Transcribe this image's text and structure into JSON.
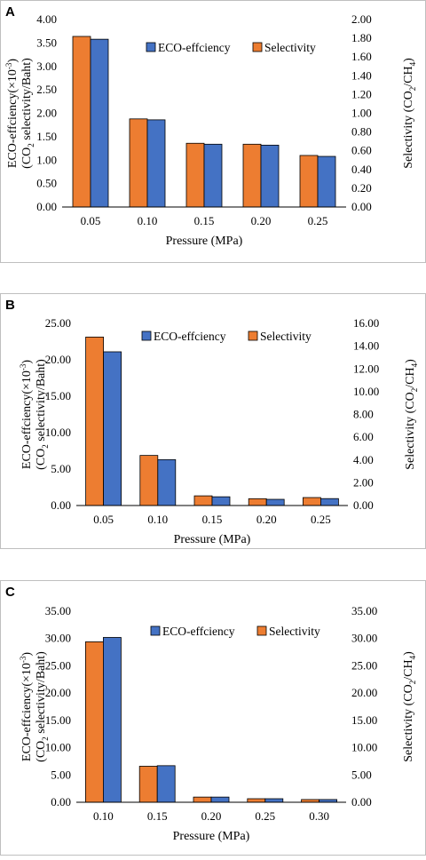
{
  "chart_data": [
    {
      "type": "bar",
      "panel": "A",
      "categories": [
        "0.05",
        "0.10",
        "0.15",
        "0.20",
        "0.25"
      ],
      "series": [
        {
          "name": "Selectivity",
          "axis": "right",
          "color": "#ed7d31",
          "values": [
            1.82,
            0.94,
            0.68,
            0.67,
            0.55
          ]
        },
        {
          "name": "ECO-effciency",
          "axis": "left",
          "color": "#4472c4",
          "values": [
            3.58,
            1.86,
            1.34,
            1.32,
            1.08
          ]
        }
      ],
      "xlabel": "Pressure (MPa)",
      "ylabel_left_line1": "ECO-effciency(×10",
      "ylabel_left_sup": "-3",
      "ylabel_left_line1_end": ")",
      "ylabel_left_line2_a": "(CO",
      "ylabel_left_line2_sub": "2",
      "ylabel_left_line2_b": " selectivity/Baht)",
      "ylabel_right_a": "Selectivity  (CO",
      "ylabel_right_sub1": "2",
      "ylabel_right_b": "/CH",
      "ylabel_right_sub2": "4",
      "ylabel_right_c": ")",
      "ylim_left": [
        0,
        4.0
      ],
      "yticks_left": [
        "0.00",
        "0.50",
        "1.00",
        "1.50",
        "2.00",
        "2.50",
        "3.00",
        "3.50",
        "4.00"
      ],
      "ylim_right": [
        0,
        2.0
      ],
      "yticks_right": [
        "0.00",
        "0.20",
        "0.40",
        "0.60",
        "0.80",
        "1.00",
        "1.20",
        "1.40",
        "1.60",
        "1.80",
        "2.00"
      ],
      "legend": "top-right",
      "grid": false
    },
    {
      "type": "bar",
      "panel": "B",
      "categories": [
        "0.05",
        "0.10",
        "0.15",
        "0.20",
        "0.25"
      ],
      "series": [
        {
          "name": "Selectivity",
          "axis": "right",
          "color": "#ed7d31",
          "values": [
            14.8,
            4.4,
            0.85,
            0.6,
            0.7
          ]
        },
        {
          "name": "ECO-effciency",
          "axis": "left",
          "color": "#4472c4",
          "values": [
            21.1,
            6.3,
            1.2,
            0.85,
            0.95
          ]
        }
      ],
      "xlabel": "Pressure (MPa)",
      "ylabel_left_line1": "ECO-effciency(×10",
      "ylabel_left_sup": "-3",
      "ylabel_left_line1_end": ")",
      "ylabel_left_line2_a": "(CO",
      "ylabel_left_line2_sub": "2",
      "ylabel_left_line2_b": " selectivity/Baht)",
      "ylabel_right_a": "Selectivity  (CO",
      "ylabel_right_sub1": "2",
      "ylabel_right_b": "/CH",
      "ylabel_right_sub2": "4",
      "ylabel_right_c": ")",
      "ylim_left": [
        0,
        25.0
      ],
      "yticks_left": [
        "0.00",
        "5.00",
        "10.00",
        "15.00",
        "20.00",
        "25.00"
      ],
      "ylim_right": [
        0,
        16.0
      ],
      "yticks_right": [
        "0.00",
        "2.00",
        "4.00",
        "6.00",
        "8.00",
        "10.00",
        "12.00",
        "14.00",
        "16.00"
      ],
      "legend": "top-right",
      "grid": false
    },
    {
      "type": "bar",
      "panel": "C",
      "categories": [
        "0.10",
        "0.15",
        "0.20",
        "0.25",
        "0.30"
      ],
      "series": [
        {
          "name": "Selectivity",
          "axis": "right",
          "color": "#ed7d31",
          "values": [
            29.4,
            6.6,
            0.95,
            0.65,
            0.5
          ]
        },
        {
          "name": "ECO-effciency",
          "axis": "left",
          "color": "#4472c4",
          "values": [
            30.2,
            6.7,
            0.95,
            0.65,
            0.5
          ]
        }
      ],
      "xlabel": "Pressure (MPa)",
      "ylabel_left_line1": "ECO-effciency(×10",
      "ylabel_left_sup": "-3",
      "ylabel_left_line1_end": ")",
      "ylabel_left_line2_a": "(CO",
      "ylabel_left_line2_sub": "2",
      "ylabel_left_line2_b": " selectivity/Baht)",
      "ylabel_right_a": "Selectivity  (CO",
      "ylabel_right_sub1": "2",
      "ylabel_right_b": "/CH",
      "ylabel_right_sub2": "4",
      "ylabel_right_c": ")",
      "ylim_left": [
        0,
        35.0
      ],
      "yticks_left": [
        "0.00",
        "5.00",
        "10.00",
        "15.00",
        "20.00",
        "25.00",
        "30.00",
        "35.00"
      ],
      "ylim_right": [
        0,
        35.0
      ],
      "yticks_right": [
        "0.00",
        "5.00",
        "10.00",
        "15.00",
        "20.00",
        "25.00",
        "30.00",
        "35.00"
      ],
      "legend": "top-right",
      "grid": false
    }
  ]
}
